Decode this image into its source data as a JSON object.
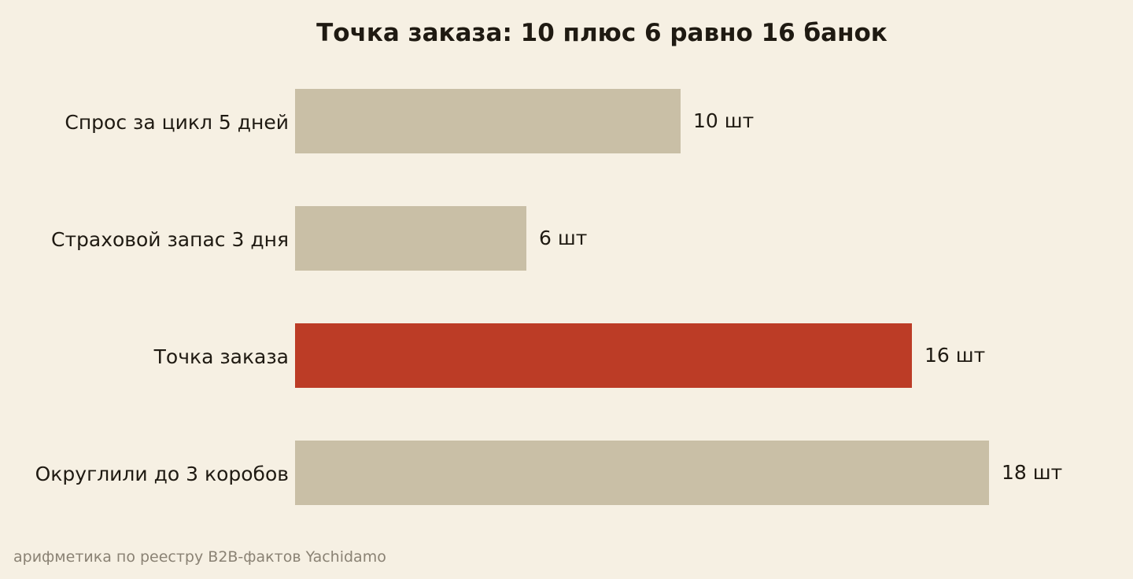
{
  "chart_data": {
    "type": "bar",
    "orientation": "horizontal",
    "title": "Точка заказа: 10 плюс 6 равно 16 банок",
    "categories": [
      "Спрос за цикл 5 дней",
      "Страховой запас 3 дня",
      "Точка заказа",
      "Округлили до 3 коробов"
    ],
    "values": [
      10,
      6,
      16,
      18
    ],
    "value_labels": [
      "10 шт",
      "6 шт",
      "16 шт",
      "18 шт"
    ],
    "highlight_index": 2,
    "xlim": [
      0,
      18
    ],
    "xlabel": "",
    "ylabel": "",
    "grid": false,
    "legend": "none",
    "colors": {
      "bar": "#c9bfa6",
      "highlight": "#bc3c26",
      "background": "#f6f0e3",
      "text": "#1f1a12",
      "footnote": "#8a8274"
    }
  },
  "footnote": "арифметика по реестру B2B-фактов Yachidamo"
}
